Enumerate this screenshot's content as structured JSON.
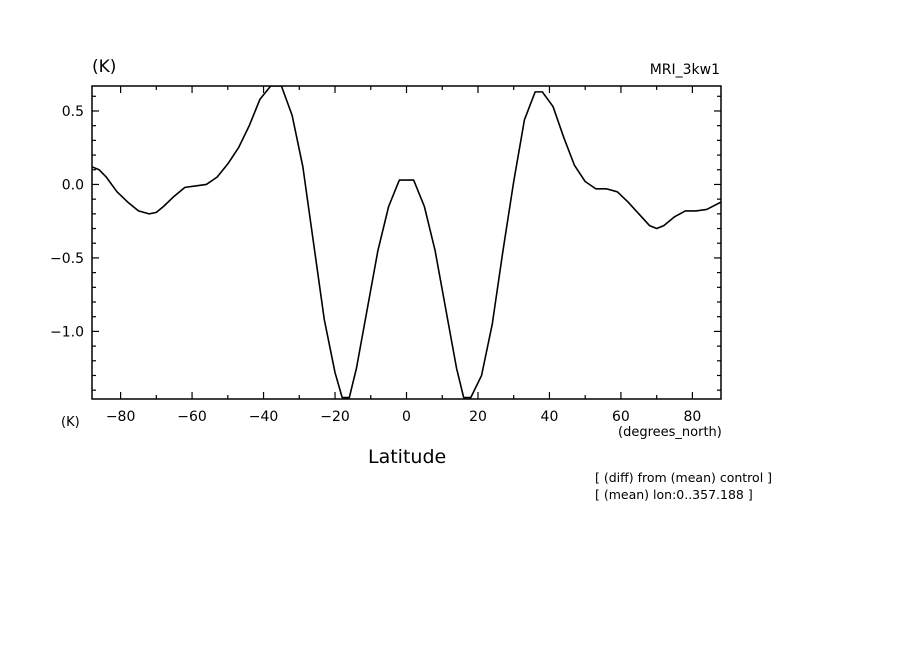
{
  "chart_data": {
    "type": "line",
    "title": "",
    "ylabel": "(K)",
    "ylabel_bottom": "(K)",
    "model_name": "MRI_3kw1",
    "xlabel": "Latitude",
    "x_units": "(degrees_north)",
    "notes": [
      "[ (diff) from (mean) control ]",
      "[ (mean) lon:0..357.188 ]"
    ],
    "xlim": [
      -88,
      88
    ],
    "ylim": [
      -1.46,
      0.67
    ],
    "x_ticks": [
      -80,
      -60,
      -40,
      -20,
      0,
      20,
      40,
      60,
      80
    ],
    "x_tick_labels": [
      "−80",
      "−60",
      "−40",
      "−20",
      "0",
      "20",
      "40",
      "60",
      "80"
    ],
    "y_ticks": [
      0.5,
      0.0,
      -0.5,
      -1.0
    ],
    "y_tick_labels": [
      "0.5",
      "0.0",
      "−0.5",
      "−1.0"
    ],
    "grid": false,
    "series": [
      {
        "x": [
          -88,
          -86,
          -84,
          -81,
          -78,
          -75,
          -72,
          -70,
          -68,
          -65,
          -62,
          -59,
          -56,
          -53,
          -50,
          -47,
          -44,
          -41,
          -38,
          -37,
          -35,
          -32,
          -29,
          -26,
          -23,
          -20,
          -18,
          -16,
          -14,
          -11,
          -8,
          -5,
          -2,
          0,
          2,
          5,
          8,
          11,
          14,
          16,
          18,
          21,
          24,
          27,
          30,
          33,
          36,
          38,
          41,
          44,
          47,
          50,
          53,
          56,
          59,
          62,
          65,
          68,
          70,
          72,
          75,
          78,
          81,
          84,
          88
        ],
        "y": [
          0.12,
          0.1,
          0.05,
          -0.05,
          -0.12,
          -0.18,
          -0.2,
          -0.19,
          -0.15,
          -0.08,
          -0.02,
          -0.01,
          0.0,
          0.05,
          0.14,
          0.25,
          0.4,
          0.58,
          0.67,
          0.67,
          0.67,
          0.47,
          0.12,
          -0.4,
          -0.92,
          -1.28,
          -1.45,
          -1.45,
          -1.25,
          -0.85,
          -0.45,
          -0.15,
          0.03,
          0.03,
          0.03,
          -0.15,
          -0.45,
          -0.85,
          -1.25,
          -1.45,
          -1.45,
          -1.3,
          -0.95,
          -0.45,
          0.02,
          0.44,
          0.63,
          0.63,
          0.53,
          0.32,
          0.13,
          0.02,
          -0.03,
          -0.03,
          -0.05,
          -0.12,
          -0.2,
          -0.28,
          -0.3,
          -0.28,
          -0.22,
          -0.18,
          -0.18,
          -0.17,
          -0.12
        ]
      }
    ]
  }
}
